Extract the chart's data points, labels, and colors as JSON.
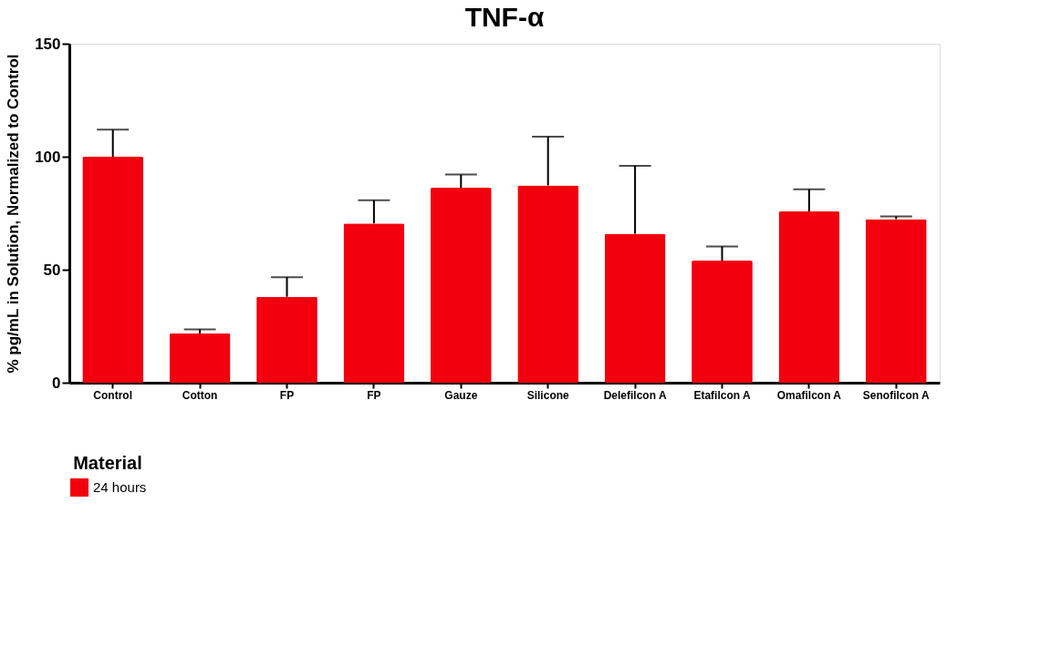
{
  "chart_data": {
    "type": "bar",
    "title": "TNF-α",
    "ylabel": "% pg/mL in Solution, Normalized to Control",
    "legend_title": "Material",
    "categories": [
      "Control",
      "Cotton",
      "FP",
      "FP",
      "Gauze",
      "Silicone",
      "Delefilcon A",
      "Etafilcon A",
      "Omafilcon A",
      "Senofilcon A"
    ],
    "series": [
      {
        "name": "24 hours",
        "color": "#f2000e",
        "values": [
          100,
          21.8,
          38,
          70.5,
          86.3,
          87.3,
          65.9,
          54,
          75.8,
          72.4
        ],
        "errors": [
          [
            100,
            112
          ],
          [
            21.8,
            23.6
          ],
          [
            38,
            46.7
          ],
          [
            70.5,
            80.7
          ],
          [
            86.3,
            92.1
          ],
          [
            87.3,
            108.9
          ],
          [
            65.9,
            96
          ],
          [
            54,
            60.3
          ],
          [
            75.8,
            85.6
          ],
          [
            72.4,
            73.6
          ]
        ]
      }
    ],
    "ylim": [
      0,
      150
    ],
    "yticks": [
      0,
      50,
      100,
      150
    ],
    "grid": false,
    "legend": "bottom"
  }
}
